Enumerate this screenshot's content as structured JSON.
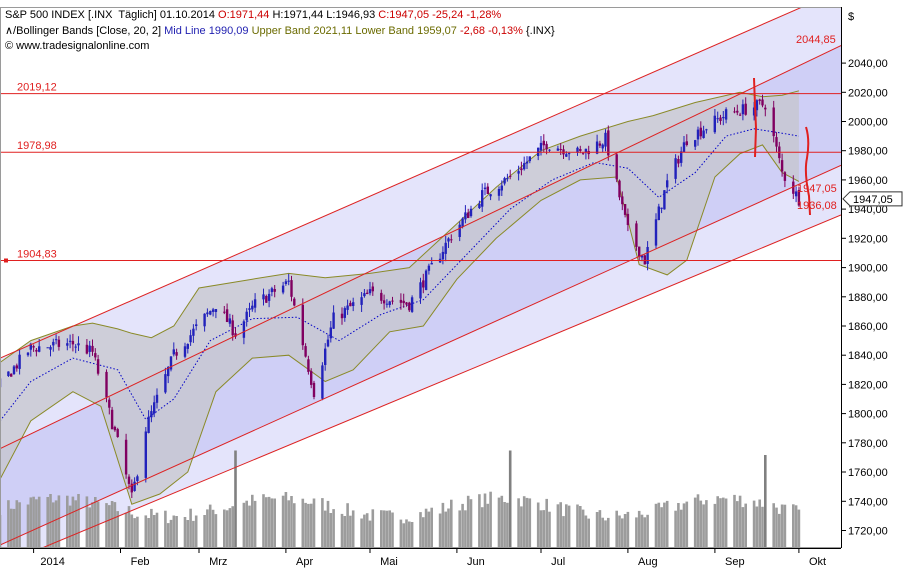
{
  "header": {
    "line1": {
      "title": "S&P 500 INDEX [.INX  Täglich]",
      "date": "01.10.2014",
      "open": "O:1971,44",
      "high": "H:1971,44",
      "low": "L:1946,93",
      "close_change": "C:1947,05 -25,24 -1,28%"
    },
    "line2": {
      "indicator": "Bollinger Bands [Close, 20, 2]",
      "mid": "Mid Line 1990,09",
      "upper": "Upper Band 2021,11",
      "lower": "Lower Band 1959,07",
      "change": "-2,68 -0,13%",
      "symbol": "{.INX}"
    },
    "line3": {
      "source": "© www.tradesignalonline.com"
    }
  },
  "colors": {
    "price_up": "#2222bb",
    "price_down": "#800060",
    "band_outline": "#8a8a28",
    "band_fill": "#c4c4ca",
    "mid_line": "#0000c8",
    "channel_line": "#dd2222",
    "channel_outer_fill": "#e4e4fb",
    "channel_inner_fill": "#cfcff6",
    "level_line": "#e02020",
    "volume_bar": "#9c9c9c",
    "volume_spike": "#808080",
    "last_price_box": "#ffffff"
  },
  "chart_data": {
    "type": "candlestick",
    "title": "S&P 500 INDEX [.INX  Täglich]",
    "y_axis": {
      "ticks": [
        1720,
        1740,
        1760,
        1780,
        1800,
        1820,
        1840,
        1860,
        1880,
        1900,
        1920,
        1940,
        1960,
        1980,
        2000,
        2020,
        2040
      ],
      "tick_labels": [
        "1720,00",
        "1740,00",
        "1760,00",
        "1780,00",
        "1800,00",
        "1820,00",
        "1840,00",
        "1860,00",
        "1880,00",
        "1900,00",
        "1920,00",
        "1940,00",
        "1960,00",
        "1980,00",
        "2000,00",
        "2020,00",
        "2040,00"
      ],
      "currency": "$",
      "range": [
        1708,
        2064
      ]
    },
    "x_axis": {
      "range": [
        "2013-12-20",
        "2014-10-16"
      ],
      "months": [
        {
          "label": "2014",
          "date": "2014-01-01"
        },
        {
          "label": "Feb",
          "date": "2014-02-01"
        },
        {
          "label": "Mrz",
          "date": "2014-03-01"
        },
        {
          "label": "Apr",
          "date": "2014-04-01"
        },
        {
          "label": "Mai",
          "date": "2014-05-01"
        },
        {
          "label": "Jun",
          "date": "2014-06-01"
        },
        {
          "label": "Jul",
          "date": "2014-07-01"
        },
        {
          "label": "Aug",
          "date": "2014-08-01"
        },
        {
          "label": "Sep",
          "date": "2014-09-01"
        },
        {
          "label": "Okt",
          "date": "2014-10-01"
        }
      ]
    },
    "price_path": [
      [
        "2013-12-20",
        1820
      ],
      [
        "2013-12-31",
        1845
      ],
      [
        "2014-01-15",
        1848
      ],
      [
        "2014-01-22",
        1842
      ],
      [
        "2014-01-31",
        1780
      ],
      [
        "2014-02-05",
        1742
      ],
      [
        "2014-02-10",
        1790
      ],
      [
        "2014-02-20",
        1840
      ],
      [
        "2014-03-07",
        1875
      ],
      [
        "2014-03-14",
        1855
      ],
      [
        "2014-03-21",
        1875
      ],
      [
        "2014-04-02",
        1890
      ],
      [
        "2014-04-11",
        1815
      ],
      [
        "2014-04-18",
        1865
      ],
      [
        "2014-05-01",
        1882
      ],
      [
        "2014-05-15",
        1875
      ],
      [
        "2014-05-30",
        1922
      ],
      [
        "2014-06-10",
        1950
      ],
      [
        "2014-06-20",
        1962
      ],
      [
        "2014-07-03",
        1985
      ],
      [
        "2014-07-15",
        1978
      ],
      [
        "2014-07-24",
        1988
      ],
      [
        "2014-08-01",
        1925
      ],
      [
        "2014-08-07",
        1905
      ],
      [
        "2014-08-15",
        1958
      ],
      [
        "2014-08-22",
        1988
      ],
      [
        "2014-09-05",
        2005
      ],
      [
        "2014-09-19",
        2012
      ],
      [
        "2014-09-25",
        1965
      ],
      [
        "2014-10-01",
        1947
      ]
    ],
    "bollinger": {
      "params": "Close, 20, 2",
      "upper": [
        [
          "2013-12-20",
          1835
        ],
        [
          "2013-12-31",
          1850
        ],
        [
          "2014-01-15",
          1860
        ],
        [
          "2014-01-22",
          1862
        ],
        [
          "2014-01-31",
          1858
        ],
        [
          "2014-02-05",
          1855
        ],
        [
          "2014-02-12",
          1852
        ],
        [
          "2014-02-20",
          1860
        ],
        [
          "2014-03-01",
          1886
        ],
        [
          "2014-03-20",
          1892
        ],
        [
          "2014-04-02",
          1896
        ],
        [
          "2014-04-15",
          1893
        ],
        [
          "2014-05-01",
          1896
        ],
        [
          "2014-05-15",
          1900
        ],
        [
          "2014-06-01",
          1930
        ],
        [
          "2014-06-15",
          1955
        ],
        [
          "2014-07-01",
          1980
        ],
        [
          "2014-07-15",
          1990
        ],
        [
          "2014-08-01",
          2000
        ],
        [
          "2014-08-10",
          2004
        ],
        [
          "2014-08-25",
          2013
        ],
        [
          "2014-09-10",
          2020
        ],
        [
          "2014-09-18",
          2017
        ],
        [
          "2014-09-25",
          2018
        ],
        [
          "2014-10-01",
          2021
        ]
      ],
      "lower": [
        [
          "2013-12-20",
          1755
        ],
        [
          "2013-12-31",
          1795
        ],
        [
          "2014-01-15",
          1815
        ],
        [
          "2014-01-25",
          1805
        ],
        [
          "2014-02-05",
          1738
        ],
        [
          "2014-02-15",
          1745
        ],
        [
          "2014-02-25",
          1760
        ],
        [
          "2014-03-07",
          1815
        ],
        [
          "2014-03-20",
          1838
        ],
        [
          "2014-04-02",
          1840
        ],
        [
          "2014-04-15",
          1822
        ],
        [
          "2014-04-25",
          1830
        ],
        [
          "2014-05-08",
          1856
        ],
        [
          "2014-05-20",
          1860
        ],
        [
          "2014-06-01",
          1892
        ],
        [
          "2014-06-15",
          1920
        ],
        [
          "2014-07-01",
          1946
        ],
        [
          "2014-07-15",
          1960
        ],
        [
          "2014-07-28",
          1962
        ],
        [
          "2014-08-05",
          1902
        ],
        [
          "2014-08-15",
          1895
        ],
        [
          "2014-08-22",
          1905
        ],
        [
          "2014-09-01",
          1962
        ],
        [
          "2014-09-10",
          1978
        ],
        [
          "2014-09-18",
          1984
        ],
        [
          "2014-09-25",
          1965
        ],
        [
          "2014-10-01",
          1959
        ]
      ],
      "mid": [
        [
          "2013-12-20",
          1795
        ],
        [
          "2013-12-31",
          1822
        ],
        [
          "2014-01-15",
          1838
        ],
        [
          "2014-01-31",
          1830
        ],
        [
          "2014-02-10",
          1796
        ],
        [
          "2014-02-20",
          1810
        ],
        [
          "2014-03-05",
          1850
        ],
        [
          "2014-03-20",
          1865
        ],
        [
          "2014-04-05",
          1866
        ],
        [
          "2014-04-20",
          1850
        ],
        [
          "2014-05-05",
          1868
        ],
        [
          "2014-05-20",
          1878
        ],
        [
          "2014-06-05",
          1910
        ],
        [
          "2014-06-20",
          1940
        ],
        [
          "2014-07-05",
          1960
        ],
        [
          "2014-07-20",
          1972
        ],
        [
          "2014-08-01",
          1968
        ],
        [
          "2014-08-12",
          1948
        ],
        [
          "2014-08-25",
          1965
        ],
        [
          "2014-09-05",
          1990
        ],
        [
          "2014-09-15",
          1995
        ],
        [
          "2014-09-25",
          1992
        ],
        [
          "2014-10-01",
          1990
        ]
      ]
    },
    "trend_channel": {
      "outer_upper": [
        [
          "2013-12-20",
          1838
        ],
        [
          "2014-10-16",
          2090
        ]
      ],
      "inner_upper": [
        [
          "2013-12-20",
          1776
        ],
        [
          "2014-10-16",
          2052
        ]
      ],
      "inner_lower": [
        [
          "2013-12-20",
          1710
        ],
        [
          "2014-10-16",
          1970
        ]
      ],
      "outer_lower": [
        [
          "2013-12-20",
          1696
        ],
        [
          "2014-10-16",
          1936
        ]
      ]
    },
    "levels": [
      {
        "value": 2019.12,
        "label": "2019,12"
      },
      {
        "value": 1978.98,
        "label": "1978,98"
      },
      {
        "value": 1904.83,
        "label": "1904,83"
      }
    ],
    "annotations": [
      {
        "label": "2044,85",
        "value": 2044.85
      },
      {
        "label": "1947,05",
        "value": 1947.05
      },
      {
        "label": "1936,08",
        "value": 1936.08
      }
    ],
    "last_price": {
      "label": "1947,05",
      "value": 1947.05
    },
    "volume_spikes": [
      {
        "date": "2014-03-14",
        "height": 0.65
      },
      {
        "date": "2014-06-20",
        "height": 0.65
      },
      {
        "date": "2014-09-19",
        "height": 0.62
      }
    ]
  }
}
